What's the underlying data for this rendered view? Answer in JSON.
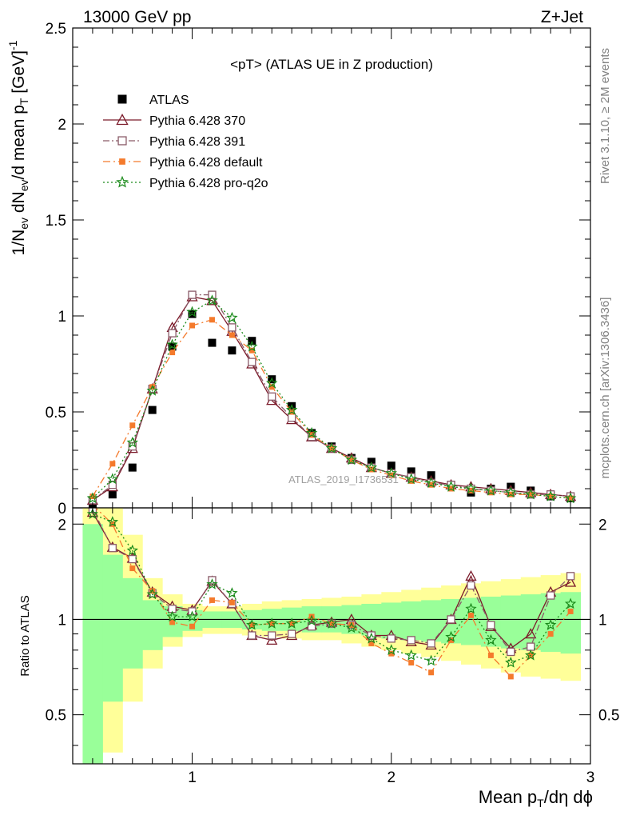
{
  "header": {
    "left": "13000 GeV pp",
    "right": "Z+Jet"
  },
  "side_labels": {
    "top": "Rivet 3.1.10, ≥ 2M events",
    "bottom": "mcplots.cern.ch [arXiv:1306.3436]"
  },
  "watermark": "ATLAS_2019_I1736531",
  "colors": {
    "atlas": "#000000",
    "p370": "#7b1a2a",
    "p391": "#8a5a68",
    "pdefault": "#f47a2c",
    "pq2o": "#1a8a1a",
    "band_inner": "#99ff99",
    "band_outer": "#ffff99"
  },
  "chart_data": [
    {
      "type": "scatter",
      "title": "<pT> (ATLAS UE in Z production)",
      "xlabel": "Mean p_T/dη dϕ",
      "ylabel": "1/N_ev dN_ev/d mean p_T [GeV]^-1",
      "xlim": [
        0.4,
        3.0
      ],
      "ylim": [
        0,
        2.5
      ],
      "yticks": [
        "0",
        "0.5",
        "1",
        "1.5",
        "2",
        "2.5"
      ],
      "xticks": [
        "1",
        "2",
        "3"
      ],
      "legend": "top-left",
      "x": [
        0.5,
        0.6,
        0.7,
        0.8,
        0.9,
        1.0,
        1.1,
        1.2,
        1.3,
        1.4,
        1.5,
        1.6,
        1.7,
        1.8,
        1.9,
        2.0,
        2.1,
        2.2,
        2.3,
        2.4,
        2.5,
        2.6,
        2.7,
        2.8,
        2.9
      ],
      "series": [
        {
          "name": "ATLAS",
          "marker": "square-filled",
          "line": "none",
          "values": [
            0.02,
            0.07,
            0.21,
            0.51,
            0.84,
            1.01,
            0.86,
            0.82,
            0.87,
            0.67,
            0.53,
            0.39,
            0.32,
            0.26,
            0.24,
            0.22,
            0.19,
            0.17,
            0.12,
            0.08,
            0.1,
            0.11,
            0.09,
            0.06,
            0.05
          ]
        },
        {
          "name": "Pythia 6.428 370",
          "marker": "triangle-open",
          "line": "solid",
          "values": [
            0.04,
            0.11,
            0.31,
            0.62,
            0.94,
            1.1,
            1.08,
            0.92,
            0.75,
            0.56,
            0.46,
            0.37,
            0.31,
            0.26,
            0.21,
            0.18,
            0.16,
            0.14,
            0.12,
            0.11,
            0.1,
            0.09,
            0.08,
            0.07,
            0.06
          ]
        },
        {
          "name": "Pythia 6.428 391",
          "marker": "square-open",
          "line": "dashdot",
          "values": [
            0.04,
            0.12,
            0.32,
            0.62,
            0.91,
            1.11,
            1.11,
            0.94,
            0.76,
            0.58,
            0.47,
            0.37,
            0.31,
            0.25,
            0.21,
            0.18,
            0.16,
            0.13,
            0.12,
            0.1,
            0.09,
            0.08,
            0.07,
            0.07,
            0.06
          ]
        },
        {
          "name": "Pythia 6.428 default",
          "marker": "square-filled-small",
          "line": "dashdot-long",
          "values": [
            0.06,
            0.23,
            0.43,
            0.63,
            0.81,
            0.95,
            0.98,
            0.9,
            0.82,
            0.63,
            0.5,
            0.38,
            0.31,
            0.25,
            0.2,
            0.17,
            0.14,
            0.12,
            0.1,
            0.09,
            0.08,
            0.07,
            0.07,
            0.06,
            0.05
          ]
        },
        {
          "name": "Pythia 6.428 pro-q2o",
          "marker": "star-open",
          "line": "dotted",
          "values": [
            0.05,
            0.15,
            0.34,
            0.61,
            0.85,
            1.02,
            1.08,
            0.99,
            0.84,
            0.65,
            0.51,
            0.39,
            0.31,
            0.25,
            0.21,
            0.18,
            0.15,
            0.13,
            0.11,
            0.1,
            0.09,
            0.08,
            0.07,
            0.06,
            0.05
          ]
        }
      ]
    },
    {
      "type": "line",
      "ylabel": "Ratio to ATLAS",
      "xlim": [
        0.4,
        3.0
      ],
      "ylim": [
        0.35,
        2.25
      ],
      "yticks": [
        "0.5",
        "1",
        "2"
      ],
      "reference_line": 1,
      "x": [
        0.5,
        0.6,
        0.7,
        0.8,
        0.9,
        1.0,
        1.1,
        1.2,
        1.3,
        1.4,
        1.5,
        1.6,
        1.7,
        1.8,
        1.9,
        2.0,
        2.1,
        2.2,
        2.3,
        2.4,
        2.5,
        2.6,
        2.7,
        2.8,
        2.9
      ],
      "bands": {
        "outer": {
          "lo": [
            0.3,
            0.38,
            0.55,
            0.7,
            0.82,
            0.88,
            0.9,
            0.9,
            0.89,
            0.88,
            0.87,
            0.86,
            0.86,
            0.84,
            0.82,
            0.8,
            0.78,
            0.76,
            0.74,
            0.72,
            0.7,
            0.68,
            0.66,
            0.65,
            0.64
          ],
          "hi": [
            2.25,
            2.25,
            1.85,
            1.35,
            1.2,
            1.12,
            1.1,
            1.1,
            1.12,
            1.14,
            1.15,
            1.16,
            1.17,
            1.18,
            1.2,
            1.22,
            1.24,
            1.26,
            1.28,
            1.3,
            1.32,
            1.34,
            1.36,
            1.38,
            1.4
          ]
        },
        "inner": {
          "lo": [
            0.3,
            0.55,
            0.7,
            0.8,
            0.88,
            0.92,
            0.94,
            0.94,
            0.93,
            0.92,
            0.92,
            0.91,
            0.91,
            0.9,
            0.89,
            0.87,
            0.86,
            0.85,
            0.84,
            0.83,
            0.82,
            0.81,
            0.8,
            0.79,
            0.78
          ],
          "hi": [
            2.0,
            1.6,
            1.35,
            1.15,
            1.1,
            1.07,
            1.06,
            1.06,
            1.07,
            1.08,
            1.09,
            1.1,
            1.1,
            1.11,
            1.12,
            1.13,
            1.14,
            1.15,
            1.16,
            1.17,
            1.18,
            1.19,
            1.2,
            1.21,
            1.22
          ]
        }
      },
      "series": [
        {
          "name": "Pythia 6.428 370",
          "values": [
            2.18,
            1.69,
            1.56,
            1.22,
            1.1,
            1.07,
            1.32,
            1.12,
            0.89,
            0.86,
            0.89,
            0.96,
            0.98,
            1.0,
            0.89,
            0.89,
            0.85,
            0.83,
            1.0,
            1.37,
            0.95,
            0.81,
            0.9,
            1.22,
            1.31
          ]
        },
        {
          "name": "Pythia 6.428 391",
          "values": [
            2.23,
            1.68,
            1.55,
            1.21,
            1.08,
            1.06,
            1.33,
            1.12,
            0.89,
            0.89,
            0.9,
            0.95,
            0.97,
            0.96,
            0.89,
            0.87,
            0.86,
            0.84,
            1.0,
            1.28,
            0.96,
            0.79,
            0.82,
            1.19,
            1.37
          ]
        },
        {
          "name": "Pythia 6.428 default",
          "values": [
            2.3,
            2.0,
            1.45,
            1.23,
            0.98,
            0.95,
            1.15,
            1.13,
            0.96,
            0.97,
            0.97,
            1.02,
            0.97,
            0.96,
            0.84,
            0.78,
            0.73,
            0.68,
            0.86,
            1.03,
            0.77,
            0.66,
            0.77,
            0.9,
            1.06
          ]
        },
        {
          "name": "Pythia 6.428 pro-q2o",
          "values": [
            2.15,
            2.03,
            1.65,
            1.2,
            1.02,
            1.02,
            1.29,
            1.21,
            0.96,
            0.97,
            0.97,
            0.99,
            0.97,
            0.94,
            0.87,
            0.8,
            0.77,
            0.74,
            0.88,
            1.08,
            0.86,
            0.73,
            0.77,
            0.96,
            1.12
          ]
        }
      ]
    }
  ]
}
